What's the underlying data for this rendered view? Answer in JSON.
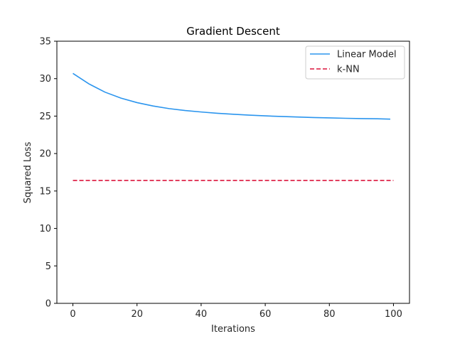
{
  "chart_data": {
    "type": "line",
    "title": "Gradient Descent",
    "xlabel": "Iterations",
    "ylabel": "Squared Loss",
    "xlim": [
      -5,
      105
    ],
    "ylim": [
      0,
      35
    ],
    "xticks": [
      0,
      20,
      40,
      60,
      80,
      100
    ],
    "yticks": [
      0,
      5,
      10,
      15,
      20,
      25,
      30,
      35
    ],
    "grid": false,
    "legend_position": "top-right",
    "series": [
      {
        "name": "Linear Model",
        "color": "#2b95ee",
        "style": "solid",
        "x": [
          0,
          5,
          10,
          15,
          20,
          25,
          30,
          35,
          40,
          45,
          50,
          55,
          60,
          65,
          70,
          75,
          80,
          85,
          90,
          95,
          99
        ],
        "y": [
          30.7,
          29.3,
          28.2,
          27.4,
          26.8,
          26.35,
          26.0,
          25.75,
          25.55,
          25.38,
          25.25,
          25.13,
          25.03,
          24.95,
          24.88,
          24.81,
          24.76,
          24.71,
          24.67,
          24.64,
          24.6
        ]
      },
      {
        "name": "k-NN",
        "color": "#dc143c",
        "style": "dashed",
        "x": [
          0,
          100
        ],
        "y": [
          16.4,
          16.4
        ]
      }
    ]
  }
}
